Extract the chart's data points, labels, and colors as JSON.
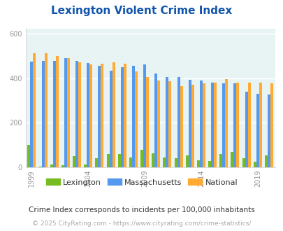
{
  "title": "Lexington Violent Crime Index",
  "subtitle": "Crime Index corresponds to incidents per 100,000 inhabitants",
  "copyright": "© 2025 CityRating.com - https://www.cityrating.com/crime-statistics/",
  "years": [
    1999,
    2000,
    2001,
    2002,
    2003,
    2004,
    2005,
    2006,
    2007,
    2008,
    2009,
    2010,
    2011,
    2012,
    2013,
    2014,
    2015,
    2016,
    2017,
    2018,
    2019,
    2020
  ],
  "lexington": [
    100,
    5,
    12,
    10,
    52,
    12,
    40,
    60,
    60,
    45,
    80,
    62,
    45,
    40,
    55,
    32,
    28,
    60,
    70,
    40,
    25,
    55
  ],
  "massachusetts": [
    475,
    478,
    478,
    490,
    478,
    468,
    455,
    432,
    450,
    455,
    460,
    420,
    405,
    405,
    392,
    390,
    380,
    375,
    375,
    340,
    330,
    325
  ],
  "national": [
    510,
    510,
    500,
    490,
    470,
    462,
    463,
    470,
    465,
    430,
    405,
    390,
    385,
    365,
    370,
    375,
    380,
    395,
    380,
    380,
    380,
    378
  ],
  "xtick_years": [
    1999,
    2004,
    2009,
    2014,
    2019
  ],
  "ylim": [
    0,
    620
  ],
  "yticks": [
    0,
    200,
    400,
    600
  ],
  "bar_width": 0.25,
  "colors": {
    "lexington": "#77bb22",
    "massachusetts": "#5599ee",
    "national": "#ffaa33",
    "background_plot": "#e8f4f4",
    "background_fig": "#ffffff",
    "title": "#1155aa",
    "subtitle": "#333333",
    "copyright": "#aaaaaa",
    "grid": "#ffffff",
    "axis_text": "#999999"
  },
  "title_fontsize": 11,
  "subtitle_fontsize": 7.5,
  "copyright_fontsize": 6.5,
  "legend_fontsize": 8,
  "tick_fontsize": 7
}
